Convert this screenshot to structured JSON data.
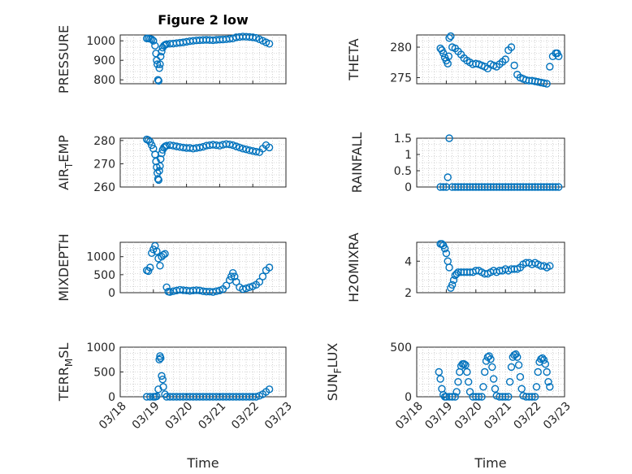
{
  "figure": {
    "title": "Figure 2 low"
  },
  "colors": {
    "marker": "#0072BD",
    "axis": "#262626",
    "grid": "#b3b3b3"
  },
  "chart_data": [
    {
      "id": "pressure",
      "type": "scatter",
      "ylabel": "PRESSURE",
      "ylim": [
        780,
        1030
      ],
      "yticks": [
        800,
        900,
        1000
      ],
      "ytick_labels": [
        "800",
        "900",
        "1000"
      ],
      "xlim": [
        0,
        5
      ],
      "xticks": [
        0,
        1,
        2,
        3,
        4,
        5
      ],
      "xtick_labels": [
        "03/18",
        "03/19",
        "03/20",
        "03/21",
        "03/22",
        "03/23"
      ],
      "show_xticklabels": false,
      "xlabel": "",
      "x": [
        0.8,
        0.85,
        0.9,
        0.95,
        1.0,
        1.05,
        1.08,
        1.1,
        1.12,
        1.14,
        1.16,
        1.18,
        1.2,
        1.22,
        1.25,
        1.28,
        1.32,
        1.36,
        1.4,
        1.5,
        1.6,
        1.7,
        1.8,
        1.9,
        2.0,
        2.1,
        2.2,
        2.3,
        2.4,
        2.5,
        2.6,
        2.7,
        2.8,
        2.9,
        3.0,
        3.1,
        3.2,
        3.3,
        3.4,
        3.5,
        3.6,
        3.7,
        3.8,
        3.9,
        4.0,
        4.1,
        4.2,
        4.3,
        4.4,
        4.5
      ],
      "y": [
        1012,
        1012,
        1010,
        1008,
        1000,
        975,
        935,
        900,
        880,
        800,
        795,
        860,
        880,
        920,
        945,
        965,
        975,
        980,
        983,
        985,
        986,
        988,
        990,
        992,
        995,
        998,
        1000,
        1002,
        1003,
        1004,
        1005,
        1004,
        1003,
        1005,
        1006,
        1007,
        1008,
        1010,
        1012,
        1018,
        1020,
        1022,
        1021,
        1020,
        1018,
        1015,
        1008,
        1000,
        992,
        985
      ]
    },
    {
      "id": "theta",
      "type": "scatter",
      "ylabel": "THETA",
      "ylim": [
        274,
        282
      ],
      "yticks": [
        275,
        280
      ],
      "ytick_labels": [
        "275",
        "280"
      ],
      "xlim": [
        0,
        5
      ],
      "xticks": [
        0,
        1,
        2,
        3,
        4,
        5
      ],
      "xtick_labels": [
        "03/18",
        "03/19",
        "03/20",
        "03/21",
        "03/22",
        "03/23"
      ],
      "show_xticklabels": false,
      "xlabel": "",
      "x": [
        0.8,
        0.85,
        0.9,
        0.95,
        1.0,
        1.05,
        1.08,
        1.1,
        1.15,
        1.2,
        1.3,
        1.4,
        1.5,
        1.6,
        1.7,
        1.8,
        1.9,
        2.0,
        2.1,
        2.2,
        2.3,
        2.4,
        2.5,
        2.6,
        2.7,
        2.8,
        2.9,
        3.0,
        3.1,
        3.2,
        3.3,
        3.4,
        3.5,
        3.6,
        3.7,
        3.8,
        3.9,
        4.0,
        4.1,
        4.2,
        4.3,
        4.4,
        4.5,
        4.6,
        4.7,
        4.75,
        4.8
      ],
      "y": [
        279.8,
        279.5,
        279.0,
        278.3,
        277.8,
        277.3,
        278.5,
        281.5,
        281.8,
        280.0,
        279.8,
        279.3,
        278.8,
        278.2,
        277.8,
        277.5,
        277.2,
        277.3,
        277.2,
        277.0,
        276.8,
        276.5,
        277.2,
        277.0,
        276.8,
        277.2,
        277.6,
        278.0,
        279.5,
        280.0,
        277.0,
        275.5,
        275.0,
        274.8,
        274.6,
        274.5,
        274.5,
        274.4,
        274.3,
        274.2,
        274.1,
        274.0,
        276.8,
        278.5,
        279.0,
        279.0,
        278.5
      ]
    },
    {
      "id": "air_temp",
      "type": "scatter",
      "ylabel": "AIR_TEMP",
      "ylim": [
        260,
        281
      ],
      "yticks": [
        260,
        270,
        280
      ],
      "ytick_labels": [
        "260",
        "270",
        "280"
      ],
      "xlim": [
        0,
        5
      ],
      "xticks": [
        0,
        1,
        2,
        3,
        4,
        5
      ],
      "xtick_labels": [
        "03/18",
        "03/19",
        "03/20",
        "03/21",
        "03/22",
        "03/23"
      ],
      "show_xticklabels": false,
      "xlabel": "",
      "x": [
        0.8,
        0.85,
        0.9,
        0.95,
        1.0,
        1.05,
        1.08,
        1.1,
        1.12,
        1.14,
        1.16,
        1.18,
        1.2,
        1.22,
        1.25,
        1.28,
        1.32,
        1.36,
        1.4,
        1.5,
        1.6,
        1.7,
        1.8,
        1.9,
        2.0,
        2.1,
        2.2,
        2.3,
        2.4,
        2.5,
        2.6,
        2.7,
        2.8,
        2.9,
        3.0,
        3.1,
        3.2,
        3.3,
        3.4,
        3.5,
        3.6,
        3.7,
        3.8,
        3.9,
        4.0,
        4.1,
        4.2,
        4.3,
        4.4,
        4.5
      ],
      "y": [
        280.5,
        280.2,
        279.5,
        278.0,
        276.5,
        274.0,
        271.0,
        268.5,
        266.0,
        263.5,
        263.0,
        267.0,
        269.0,
        272.0,
        274.5,
        276.0,
        277.0,
        277.5,
        277.8,
        278.0,
        277.8,
        277.5,
        277.2,
        277.0,
        276.8,
        276.8,
        276.5,
        276.8,
        277.0,
        277.3,
        277.8,
        278.0,
        278.2,
        278.0,
        277.8,
        278.2,
        278.5,
        278.3,
        278.0,
        277.5,
        277.0,
        276.5,
        276.2,
        275.8,
        275.5,
        275.2,
        275.0,
        276.5,
        278.0,
        277.0
      ]
    },
    {
      "id": "rainfall",
      "type": "scatter",
      "ylabel": "RAINFALL",
      "ylim": [
        0,
        1.5
      ],
      "yticks": [
        0,
        0.5,
        1,
        1.5
      ],
      "ytick_labels": [
        "0",
        "0.5",
        "1",
        "1.5"
      ],
      "xlim": [
        0,
        5
      ],
      "xticks": [
        0,
        1,
        2,
        3,
        4,
        5
      ],
      "xtick_labels": [
        "03/18",
        "03/19",
        "03/20",
        "03/21",
        "03/22",
        "03/23"
      ],
      "show_xticklabels": false,
      "xlabel": "",
      "x": [
        0.8,
        0.9,
        1.0,
        1.05,
        1.1,
        1.2,
        1.3,
        1.4,
        1.5,
        1.6,
        1.7,
        1.8,
        1.9,
        2.0,
        2.1,
        2.2,
        2.3,
        2.4,
        2.5,
        2.6,
        2.7,
        2.8,
        2.9,
        3.0,
        3.1,
        3.2,
        3.3,
        3.4,
        3.5,
        3.6,
        3.7,
        3.8,
        3.9,
        4.0,
        4.1,
        4.2,
        4.3,
        4.4,
        4.5,
        4.6,
        4.7,
        4.8
      ],
      "y": [
        0,
        0,
        0,
        0.3,
        1.5,
        0,
        0,
        0,
        0,
        0,
        0,
        0,
        0,
        0,
        0,
        0,
        0,
        0,
        0,
        0,
        0,
        0,
        0,
        0,
        0,
        0,
        0,
        0,
        0,
        0,
        0,
        0,
        0,
        0,
        0,
        0,
        0,
        0,
        0,
        0,
        0,
        0
      ]
    },
    {
      "id": "mixdepth",
      "type": "scatter",
      "ylabel": "MIXDEPTH",
      "ylim": [
        0,
        1400
      ],
      "yticks": [
        0,
        500,
        1000
      ],
      "ytick_labels": [
        "0",
        "500",
        "1000"
      ],
      "xlim": [
        0,
        5
      ],
      "xticks": [
        0,
        1,
        2,
        3,
        4,
        5
      ],
      "xtick_labels": [
        "03/18",
        "03/19",
        "03/20",
        "03/21",
        "03/22",
        "03/23"
      ],
      "show_xticklabels": false,
      "xlabel": "",
      "x": [
        0.8,
        0.85,
        0.9,
        0.95,
        1.0,
        1.05,
        1.1,
        1.15,
        1.2,
        1.25,
        1.3,
        1.35,
        1.4,
        1.45,
        1.5,
        1.6,
        1.7,
        1.8,
        1.9,
        2.0,
        2.1,
        2.2,
        2.3,
        2.4,
        2.5,
        2.6,
        2.7,
        2.8,
        2.9,
        3.0,
        3.1,
        3.2,
        3.3,
        3.35,
        3.4,
        3.45,
        3.5,
        3.6,
        3.7,
        3.8,
        3.9,
        4.0,
        4.1,
        4.2,
        4.3,
        4.4,
        4.5
      ],
      "y": [
        620,
        600,
        700,
        1100,
        1200,
        1300,
        1150,
        950,
        750,
        1000,
        1050,
        1080,
        150,
        30,
        20,
        40,
        60,
        80,
        70,
        60,
        50,
        60,
        70,
        60,
        40,
        30,
        30,
        20,
        40,
        60,
        100,
        200,
        350,
        450,
        550,
        450,
        300,
        150,
        100,
        120,
        150,
        180,
        220,
        300,
        450,
        620,
        700
      ]
    },
    {
      "id": "h2omixra",
      "type": "scatter",
      "ylabel": "H2OMIXRA",
      "ylim": [
        2,
        5.2
      ],
      "yticks": [
        2,
        4
      ],
      "ytick_labels": [
        "2",
        "4"
      ],
      "xlim": [
        0,
        5
      ],
      "xticks": [
        0,
        1,
        2,
        3,
        4,
        5
      ],
      "xtick_labels": [
        "03/18",
        "03/19",
        "03/20",
        "03/21",
        "03/22",
        "03/23"
      ],
      "show_xticklabels": false,
      "xlabel": "",
      "x": [
        0.8,
        0.85,
        0.9,
        0.95,
        1.0,
        1.05,
        1.1,
        1.15,
        1.2,
        1.25,
        1.3,
        1.35,
        1.4,
        1.5,
        1.6,
        1.7,
        1.8,
        1.9,
        2.0,
        2.1,
        2.2,
        2.3,
        2.4,
        2.5,
        2.6,
        2.7,
        2.8,
        2.9,
        3.0,
        3.1,
        3.2,
        3.3,
        3.4,
        3.5,
        3.6,
        3.7,
        3.8,
        3.9,
        4.0,
        4.1,
        4.2,
        4.3,
        4.4,
        4.5
      ],
      "y": [
        5.1,
        5.1,
        5.0,
        4.8,
        4.5,
        4.0,
        3.6,
        2.3,
        2.5,
        2.8,
        3.1,
        3.2,
        3.3,
        3.3,
        3.3,
        3.3,
        3.3,
        3.3,
        3.4,
        3.4,
        3.3,
        3.2,
        3.2,
        3.3,
        3.4,
        3.3,
        3.4,
        3.4,
        3.5,
        3.4,
        3.5,
        3.5,
        3.5,
        3.6,
        3.8,
        3.9,
        3.9,
        3.8,
        3.9,
        3.8,
        3.7,
        3.7,
        3.6,
        3.7
      ]
    },
    {
      "id": "terr_msl",
      "type": "scatter",
      "ylabel": "TERR_MSL",
      "ylim": [
        0,
        1000
      ],
      "yticks": [
        0,
        500,
        1000
      ],
      "ytick_labels": [
        "0",
        "500",
        "1000"
      ],
      "xlim": [
        0,
        5
      ],
      "xticks": [
        0,
        1,
        2,
        3,
        4,
        5
      ],
      "xtick_labels": [
        "03/18",
        "03/19",
        "03/20",
        "03/21",
        "03/22",
        "03/23"
      ],
      "show_xticklabels": true,
      "xlabel": "Time",
      "x": [
        0.8,
        0.9,
        1.0,
        1.05,
        1.1,
        1.15,
        1.18,
        1.2,
        1.22,
        1.25,
        1.28,
        1.3,
        1.35,
        1.4,
        1.5,
        1.6,
        1.7,
        1.8,
        1.9,
        2.0,
        2.1,
        2.2,
        2.3,
        2.4,
        2.5,
        2.6,
        2.7,
        2.8,
        2.9,
        3.0,
        3.1,
        3.2,
        3.3,
        3.4,
        3.5,
        3.6,
        3.7,
        3.8,
        3.9,
        4.0,
        4.1,
        4.2,
        4.3,
        4.4,
        4.5
      ],
      "y": [
        0,
        0,
        0,
        0,
        10,
        150,
        750,
        820,
        780,
        420,
        350,
        200,
        50,
        0,
        0,
        0,
        0,
        0,
        0,
        0,
        0,
        0,
        0,
        0,
        0,
        0,
        0,
        0,
        0,
        0,
        0,
        0,
        0,
        0,
        0,
        0,
        0,
        0,
        0,
        0,
        0,
        20,
        50,
        100,
        150
      ]
    },
    {
      "id": "sun_flux",
      "type": "scatter",
      "ylabel": "SUN_FLUX",
      "ylim": [
        0,
        500
      ],
      "yticks": [
        0,
        500
      ],
      "ytick_labels": [
        "0",
        "500"
      ],
      "xlim": [
        0,
        5
      ],
      "xticks": [
        0,
        1,
        2,
        3,
        4,
        5
      ],
      "xtick_labels": [
        "03/18",
        "03/19",
        "03/20",
        "03/21",
        "03/22",
        "03/23"
      ],
      "show_xticklabels": true,
      "xlabel": "Time",
      "x": [
        0.75,
        0.8,
        0.85,
        0.9,
        0.95,
        1.0,
        1.1,
        1.2,
        1.3,
        1.35,
        1.4,
        1.45,
        1.5,
        1.55,
        1.6,
        1.65,
        1.7,
        1.75,
        1.8,
        1.9,
        2.0,
        2.1,
        2.2,
        2.25,
        2.3,
        2.35,
        2.4,
        2.45,
        2.5,
        2.55,
        2.6,
        2.65,
        2.7,
        2.8,
        2.9,
        3.0,
        3.1,
        3.15,
        3.2,
        3.25,
        3.3,
        3.35,
        3.4,
        3.45,
        3.5,
        3.55,
        3.6,
        3.7,
        3.8,
        3.9,
        4.0,
        4.05,
        4.1,
        4.15,
        4.2,
        4.25,
        4.3,
        4.35,
        4.4,
        4.45,
        4.5
      ],
      "y": [
        250,
        180,
        80,
        20,
        0,
        0,
        0,
        0,
        0,
        50,
        150,
        250,
        310,
        330,
        330,
        320,
        250,
        150,
        50,
        0,
        0,
        0,
        0,
        100,
        250,
        360,
        400,
        410,
        380,
        300,
        180,
        80,
        10,
        0,
        0,
        0,
        0,
        150,
        300,
        400,
        420,
        430,
        400,
        320,
        200,
        80,
        10,
        0,
        0,
        0,
        0,
        100,
        250,
        350,
        380,
        390,
        370,
        330,
        250,
        150,
        100
      ]
    }
  ]
}
